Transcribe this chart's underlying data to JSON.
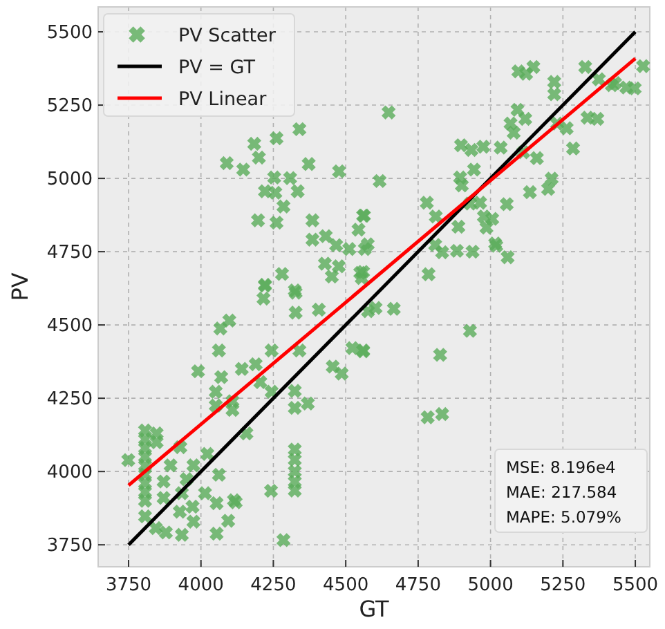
{
  "chart_data": {
    "type": "scatter",
    "xlabel": "GT",
    "ylabel": "PV",
    "xlim": [
      3645,
      5550
    ],
    "ylim": [
      3675,
      5585
    ],
    "xticks": [
      3750,
      4000,
      4250,
      4500,
      4750,
      5000,
      5250,
      5500
    ],
    "yticks": [
      3750,
      4000,
      4250,
      4500,
      4750,
      5000,
      5250,
      5500
    ],
    "grid": true,
    "legend": "top left",
    "marker": "cross",
    "series": [
      {
        "name": "PV Scatter",
        "color": "#5aad5a",
        "x": [
          4340,
          4261,
          4184,
          4200,
          4089,
          4146,
          4372,
          4477,
          4253,
          4308,
          4221,
          4257,
          4334,
          4285,
          4197,
          4261,
          4385,
          4563,
          4544,
          4385,
          4431,
          4467,
          4512,
          4566,
          4428,
          4476,
          4452,
          4550,
          4555,
          4280,
          4221,
          4324,
          5096,
          5148,
          5123,
          5327,
          5527,
          5220,
          5220,
          5374,
          5419,
          5430,
          5469,
          5498,
          4648,
          5093,
          5069,
          5120,
          5080,
          5230,
          5263,
          5335,
          5369,
          5285,
          4898,
          4934,
          4975,
          5035,
          5113,
          5160,
          4943,
          4895,
          4901,
          4617,
          5211,
          5199,
          5136,
          4780,
          4811,
          4930,
          4964,
          5056,
          4977,
          5006,
          4986,
          4889,
          4560,
          5016,
          5020,
          5059,
          4809,
          4833,
          4884,
          4938,
          4786,
          4576,
          4560,
          3807,
          3807,
          3807,
          3807,
          3807,
          3807,
          3807,
          3807,
          3807,
          3749,
          3847,
          3847,
          3895,
          3929,
          3974,
          3950,
          3871,
          3871,
          3934,
          4022,
          4062,
          4014,
          4054,
          4114,
          4120,
          3971,
          3927,
          3974,
          3807,
          3844,
          3879,
          3934,
          4054,
          4094,
          4285,
          4242,
          4324,
          4324,
          4324,
          4324,
          4324,
          4324,
          4324,
          4369,
          4244,
          4340,
          4067,
          4098,
          4062,
          3990,
          4070,
          4051,
          4051,
          4109,
          4141,
          4189,
          4205,
          4244,
          4157,
          4109,
          4327,
          4327,
          4221,
          4216,
          4407,
          4523,
          4560,
          4455,
          4486,
          4577,
          4603,
          4666,
          4560,
          4929,
          4826,
          4783,
          4833
        ],
        "values": [
          5168,
          5137,
          5118,
          5071,
          5052,
          5030,
          5049,
          5024,
          5003,
          5001,
          4956,
          4951,
          4956,
          4904,
          4857,
          4849,
          4857,
          4873,
          4825,
          4791,
          4803,
          4772,
          4759,
          4759,
          4709,
          4700,
          4665,
          4678,
          4660,
          4674,
          4637,
          4618,
          5365,
          5380,
          5357,
          5380,
          5383,
          5329,
          5287,
          5338,
          5318,
          5325,
          5310,
          5307,
          5225,
          5234,
          5187,
          5203,
          5156,
          5187,
          5171,
          5207,
          5203,
          5102,
          5113,
          5097,
          5108,
          5105,
          5089,
          5069,
          5030,
          5003,
          4976,
          4991,
          4999,
          4964,
          4953,
          4917,
          4870,
          4914,
          4917,
          4912,
          4870,
          4862,
          4832,
          4835,
          4873,
          4778,
          4770,
          4731,
          4773,
          4748,
          4753,
          4750,
          4673,
          4775,
          4681,
          4140,
          4110,
          4080,
          4050,
          4020,
          3990,
          3960,
          3930,
          3900,
          4039,
          4130,
          4100,
          4021,
          4083,
          4021,
          3974,
          3966,
          3910,
          3926,
          4060,
          3989,
          3926,
          3892,
          3902,
          3895,
          3880,
          3863,
          3829,
          3847,
          3807,
          3792,
          3784,
          3788,
          3832,
          3766,
          3934,
          4075,
          4040,
          4000,
          3965,
          3935,
          4275,
          4217,
          4232,
          4413,
          4413,
          4488,
          4515,
          4413,
          4342,
          4322,
          4272,
          4225,
          4240,
          4350,
          4366,
          4305,
          4272,
          4130,
          4210,
          4610,
          4542,
          4634,
          4590,
          4552,
          4421,
          4413,
          4358,
          4334,
          4547,
          4558,
          4555,
          4410,
          4480,
          4398,
          4185,
          4196
        ]
      },
      {
        "name": "PV = GT",
        "type": "line",
        "color": "#000000",
        "marker": "none",
        "x": [
          3750,
          5500
        ],
        "values": [
          3750,
          5500
        ]
      },
      {
        "name": "PV Linear",
        "type": "line",
        "color": "#ff0000",
        "marker": "none",
        "x": [
          3750,
          5500
        ],
        "values": [
          3953,
          5409
        ]
      }
    ],
    "annotations": [
      "MSE: 8.196e4",
      "MAE: 217.584",
      "MAPE: 5.079%"
    ]
  }
}
